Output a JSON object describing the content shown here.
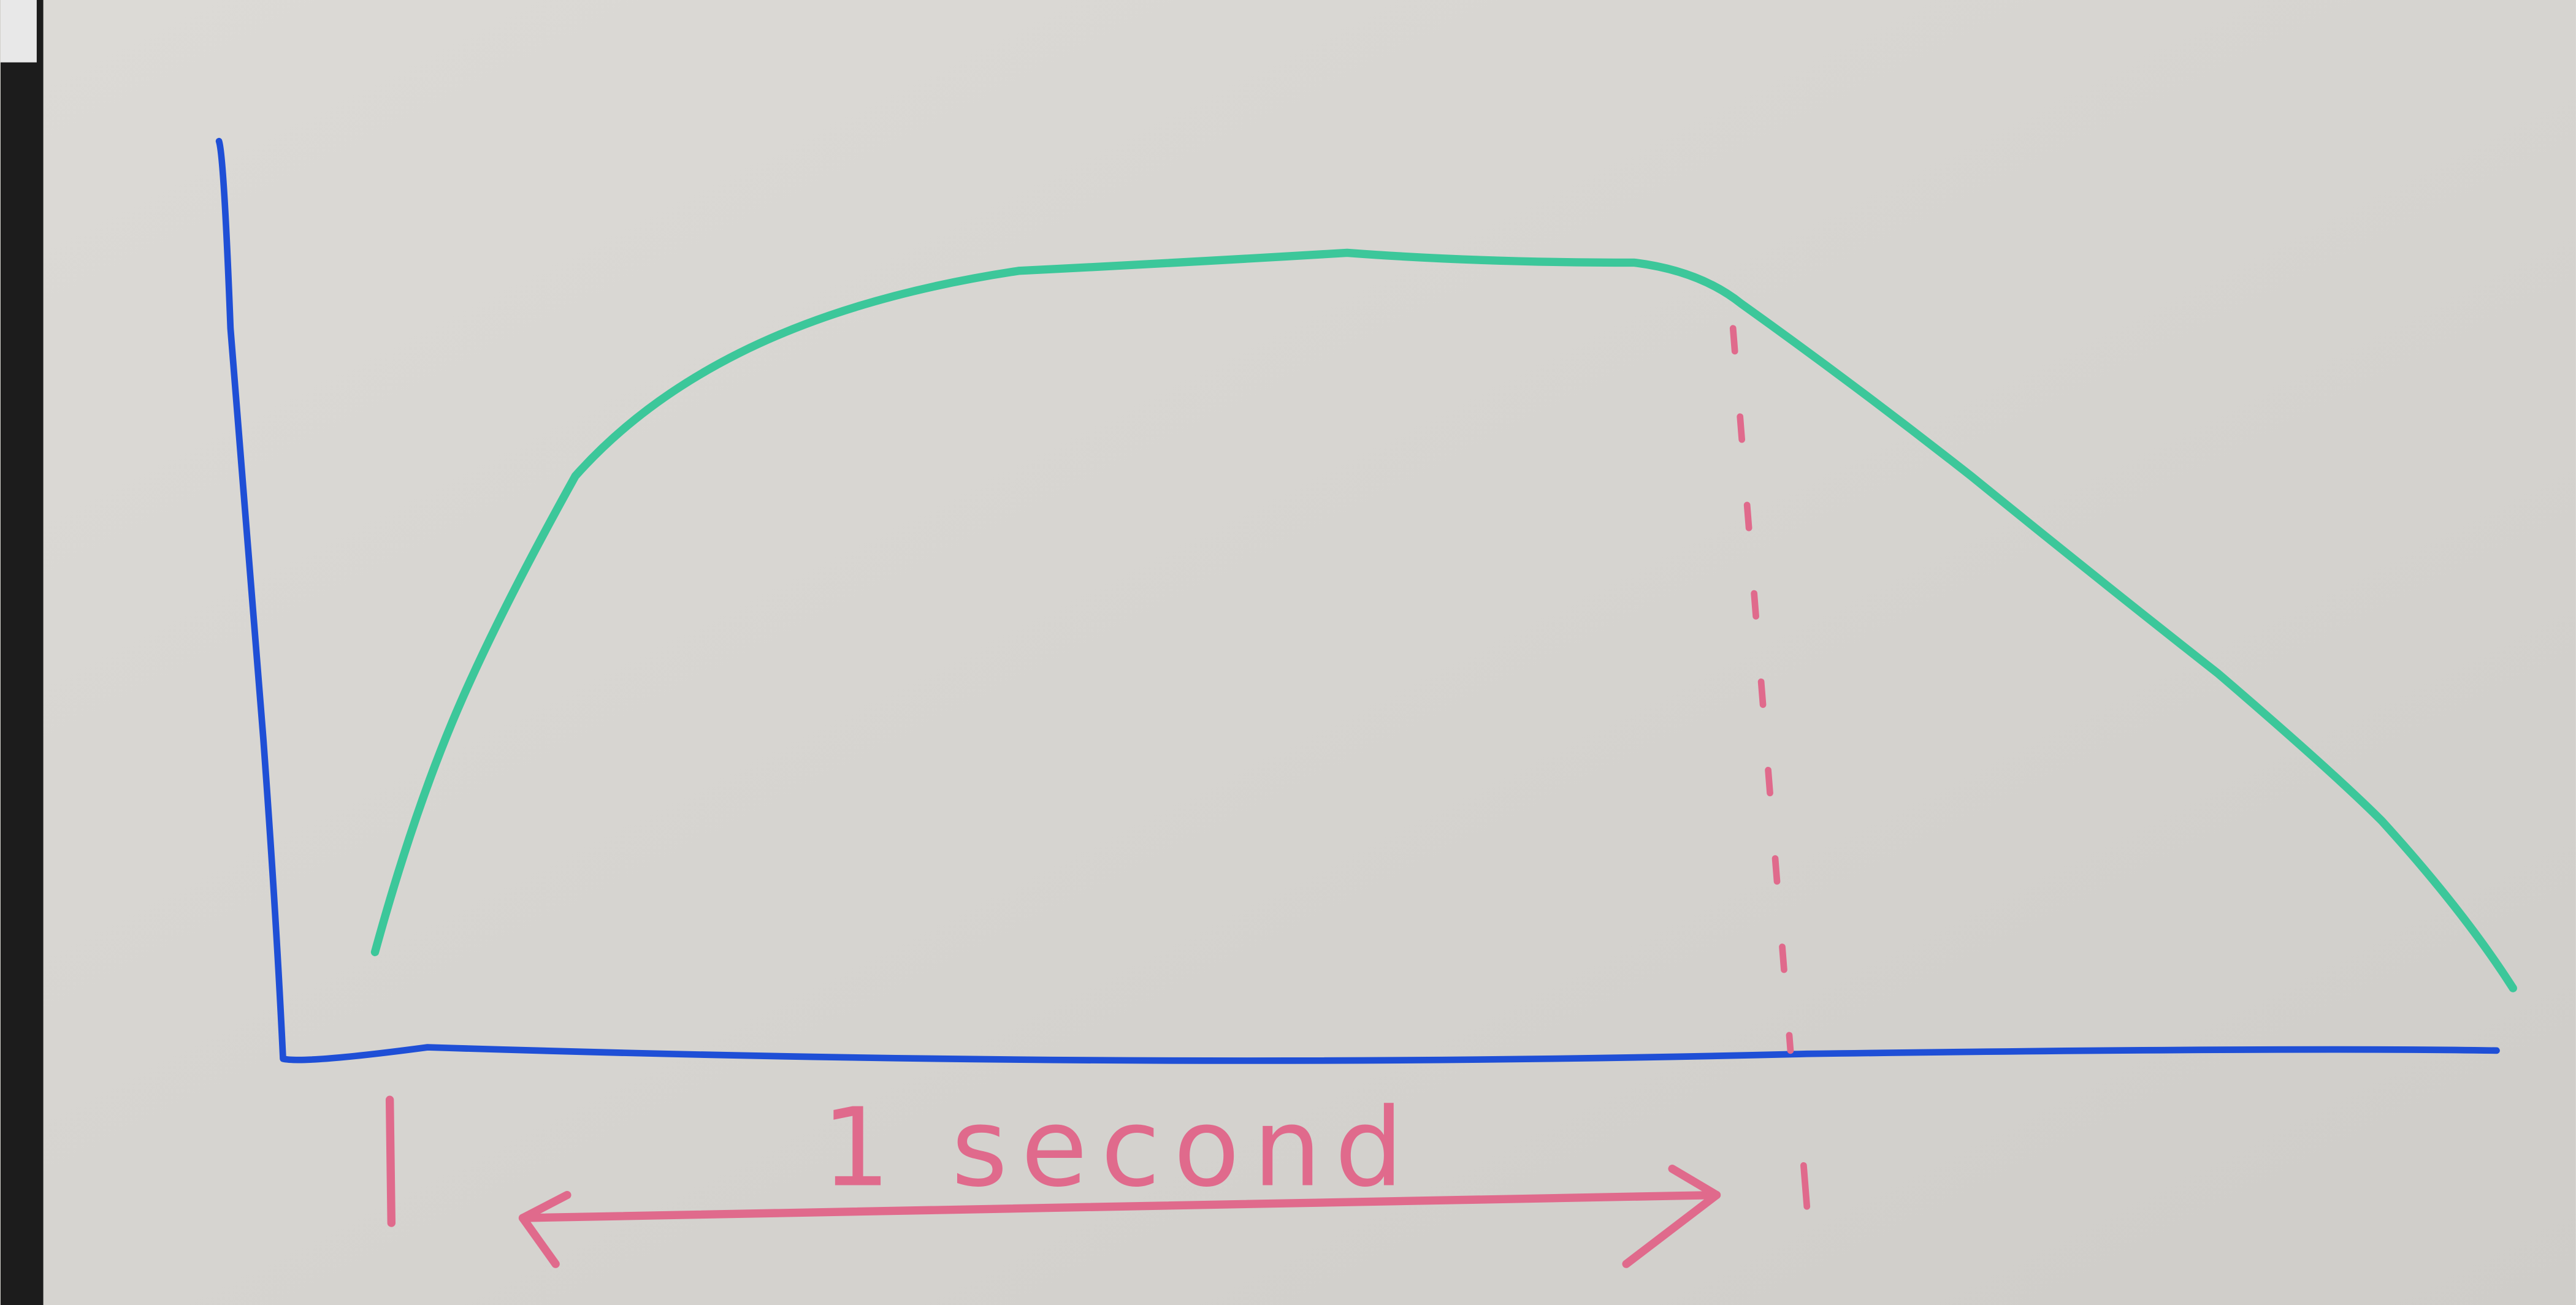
{
  "annotation": "1 second"
}
